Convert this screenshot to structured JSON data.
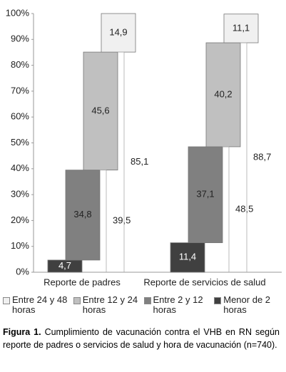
{
  "chart_data": {
    "type": "staggered_stack",
    "categories": [
      "Reporte de padres",
      "Reporte de servicios de salud"
    ],
    "series": [
      {
        "name": "Menor de 2 horas",
        "color": "#404040",
        "values": [
          4.7,
          11.4
        ],
        "value_labels": [
          "4,7",
          "11,4"
        ]
      },
      {
        "name": "Entre 2 y 12 horas",
        "color": "#808080",
        "values": [
          34.8,
          37.1
        ],
        "value_labels": [
          "34,8",
          "37,1"
        ]
      },
      {
        "name": "Entre 12 y 24 horas",
        "color": "#c0c0c0",
        "values": [
          45.6,
          40.2
        ],
        "value_labels": [
          "45,6",
          "40,2"
        ]
      },
      {
        "name": "Entre 24 y 48 horas",
        "color": "#f0f0f0",
        "values": [
          14.9,
          11.1
        ],
        "value_labels": [
          "14,9",
          "11,1"
        ]
      }
    ],
    "cumulative_labels": [
      [
        "39,5",
        "85,1"
      ],
      [
        "48,5",
        "88,7"
      ]
    ],
    "ylim": [
      0,
      100
    ],
    "yticks": [
      {
        "value": 0,
        "label": "0%"
      },
      {
        "value": 10,
        "label": "10%"
      },
      {
        "value": 20,
        "label": "20%"
      },
      {
        "value": 30,
        "label": "30%"
      },
      {
        "value": 40,
        "label": "40%"
      },
      {
        "value": 50,
        "label": "50%"
      },
      {
        "value": 60,
        "label": "60%"
      },
      {
        "value": 70,
        "label": "70%"
      },
      {
        "value": 80,
        "label": "80%"
      },
      {
        "value": 90,
        "label": "90%"
      },
      {
        "value": 100,
        "label": "100%"
      }
    ],
    "grid": false
  },
  "caption": {
    "label": "Figura 1.",
    "text": "Cumplimiento de vacunación contra el VHB en RN según reporte de padres o servicios de salud y hora de vacunación (n=740)."
  }
}
